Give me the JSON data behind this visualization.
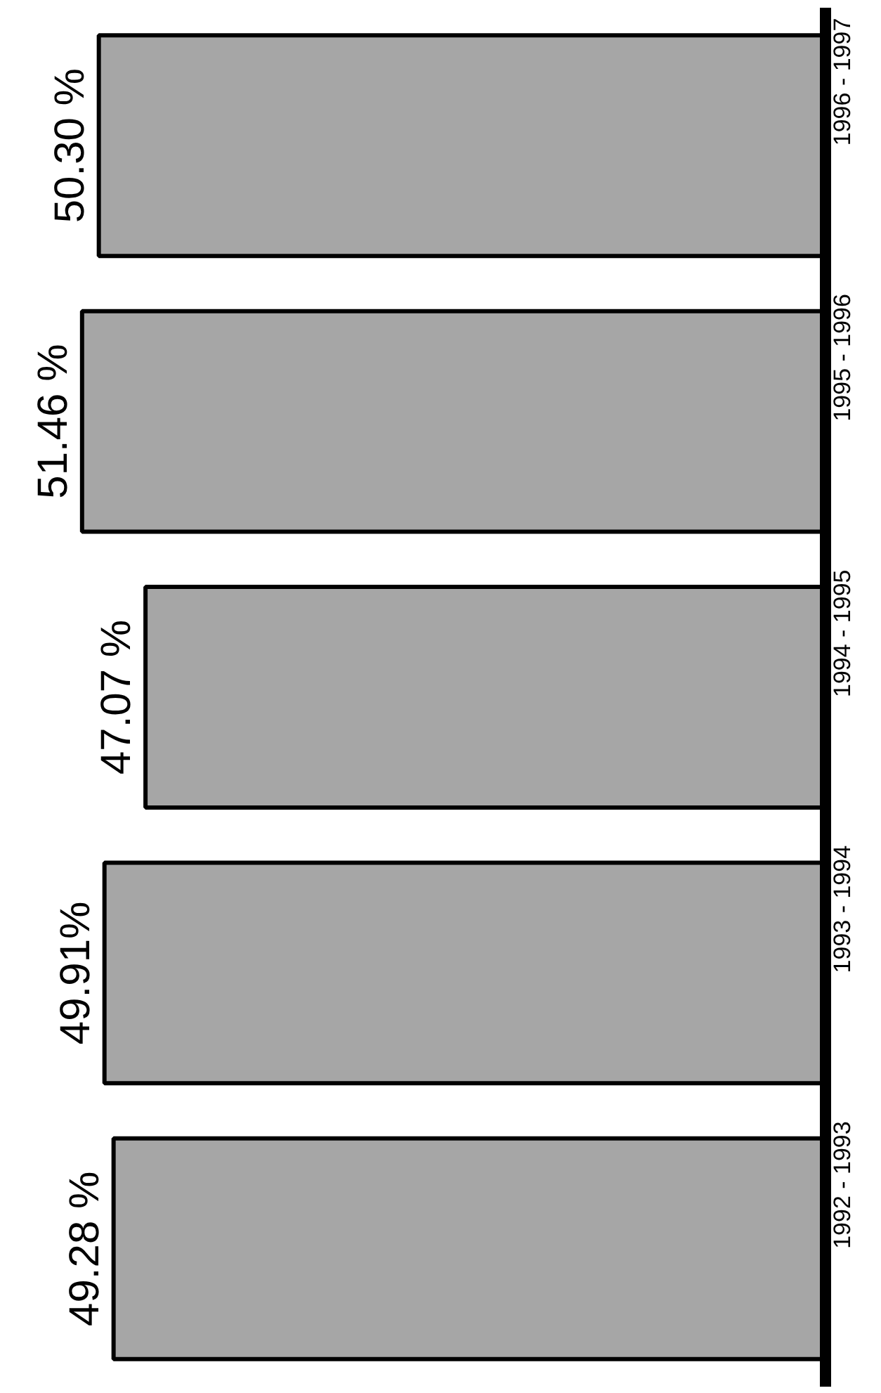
{
  "chart_data": {
    "type": "bar",
    "orientation": "horizontal",
    "categories": [
      "1996 - 1997",
      "1995 - 1996",
      "1994 - 1995",
      "1993 - 1994",
      "1992 - 1993"
    ],
    "values": [
      50.3,
      51.46,
      47.07,
      49.91,
      49.28
    ],
    "value_labels": [
      "50.30 %",
      "51.46 %",
      "47.07 %",
      "49.91%",
      "49.28 %"
    ],
    "color": "#a6a6a6",
    "grid": false
  }
}
